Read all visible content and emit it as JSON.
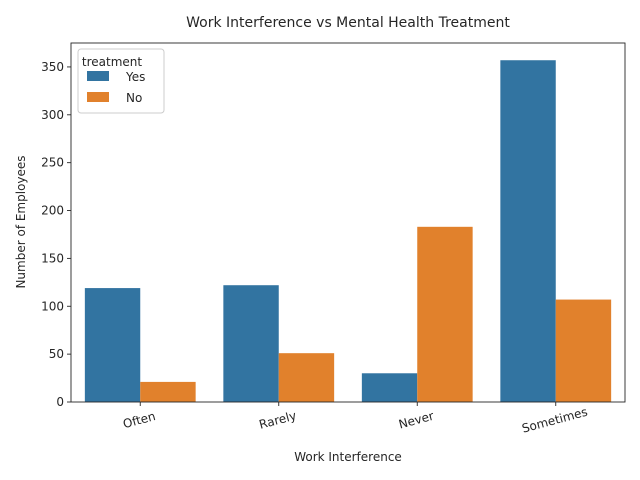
{
  "chart_data": {
    "type": "bar",
    "title": "Work Interference vs Mental Health Treatment",
    "xlabel": "Work Interference",
    "ylabel": "Number of Employees",
    "categories": [
      "Often",
      "Rarely",
      "Never",
      "Sometimes"
    ],
    "series": [
      {
        "name": "Yes",
        "color": "#3274a1",
        "values": [
          119,
          122,
          30,
          357
        ]
      },
      {
        "name": "No",
        "color": "#e1812c",
        "values": [
          21,
          51,
          183,
          107
        ]
      }
    ],
    "ylim": [
      0,
      375
    ],
    "yticks": [
      0,
      50,
      100,
      150,
      200,
      250,
      300,
      350
    ],
    "legend": {
      "title": "treatment",
      "placement": "top-left"
    },
    "grid": false
  }
}
